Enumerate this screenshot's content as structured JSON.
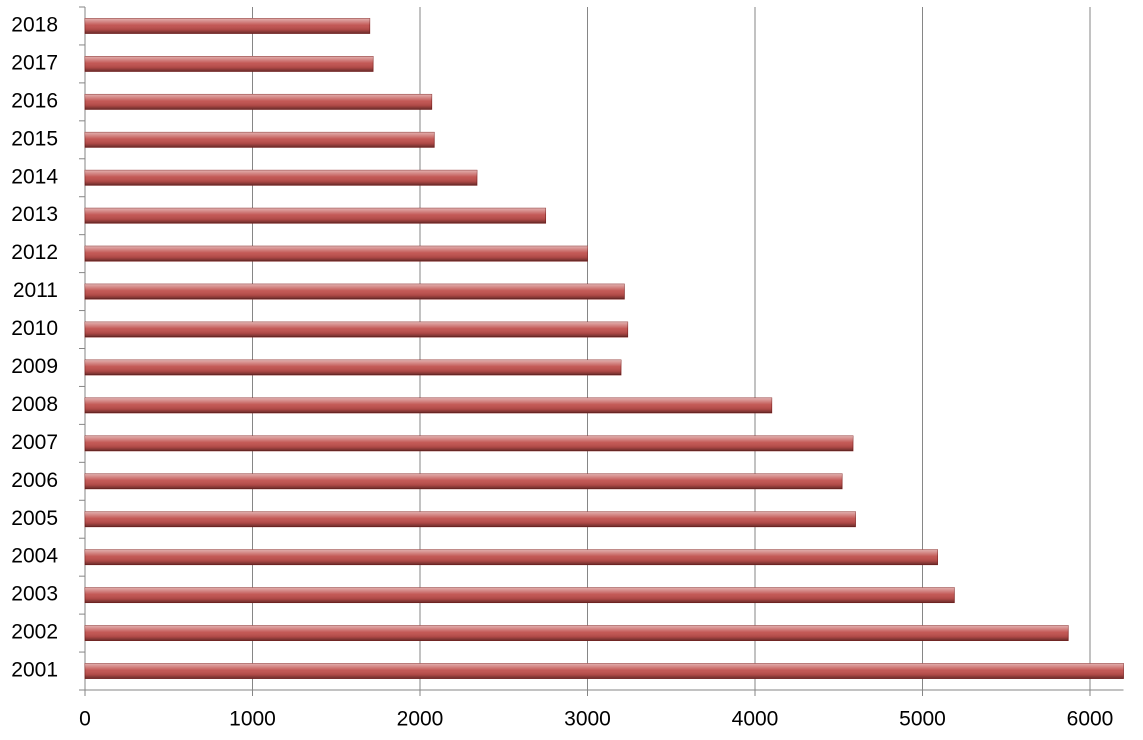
{
  "chart_data": {
    "type": "bar",
    "orientation": "horizontal",
    "categories": [
      "2001",
      "2002",
      "2003",
      "2004",
      "2005",
      "2006",
      "2007",
      "2008",
      "2009",
      "2010",
      "2011",
      "2012",
      "2013",
      "2014",
      "2015",
      "2016",
      "2017",
      "2018"
    ],
    "values": [
      6200,
      5870,
      5190,
      5090,
      4600,
      4520,
      4585,
      4100,
      3200,
      3240,
      3220,
      3000,
      2750,
      2340,
      2085,
      2070,
      1720,
      1700
    ],
    "color": "#c0504d",
    "xlim": [
      0,
      6200
    ],
    "xticks": [
      0,
      1000,
      2000,
      3000,
      4000,
      5000,
      6000
    ],
    "grid": true
  }
}
